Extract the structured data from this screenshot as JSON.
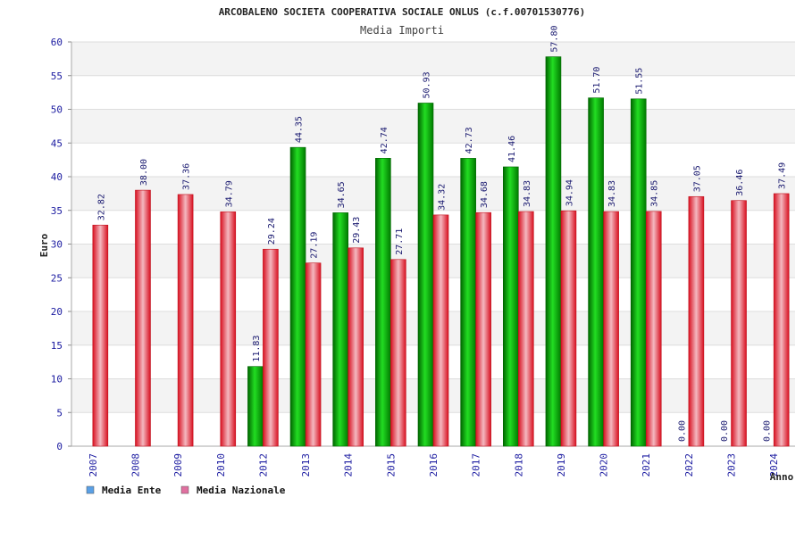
{
  "chart_data": {
    "type": "bar",
    "title": "ARCOBALENO SOCIETA COOPERATIVA SOCIALE ONLUS (c.f.00701530776)",
    "subtitle": "Media Importi",
    "xlabel": "Anno",
    "ylabel": "Euro",
    "ylim": [
      0,
      60
    ],
    "yticks": [
      0,
      5,
      10,
      15,
      20,
      25,
      30,
      35,
      40,
      45,
      50,
      55,
      60
    ],
    "grid": true,
    "legend_position": "bottom-left",
    "categories": [
      "2007",
      "2008",
      "2009",
      "2010",
      "2012",
      "2013",
      "2014",
      "2015",
      "2016",
      "2017",
      "2018",
      "2019",
      "2020",
      "2021",
      "2022",
      "2023",
      "2024"
    ],
    "series": [
      {
        "name": "Media Ente",
        "color": "#00b000",
        "legend_color": "#5aa0e6",
        "values": [
          null,
          null,
          null,
          null,
          11.83,
          44.35,
          34.65,
          42.74,
          50.93,
          42.73,
          41.46,
          57.8,
          51.7,
          51.55,
          0.0,
          0.0,
          0.0
        ]
      },
      {
        "name": "Media Nazionale",
        "color": "#e8323c",
        "legend_color": "#e070a0",
        "values": [
          32.82,
          38.0,
          37.36,
          34.79,
          29.24,
          27.19,
          29.43,
          27.71,
          34.32,
          34.68,
          34.83,
          34.94,
          34.83,
          34.85,
          37.05,
          36.46,
          37.49
        ]
      }
    ]
  }
}
